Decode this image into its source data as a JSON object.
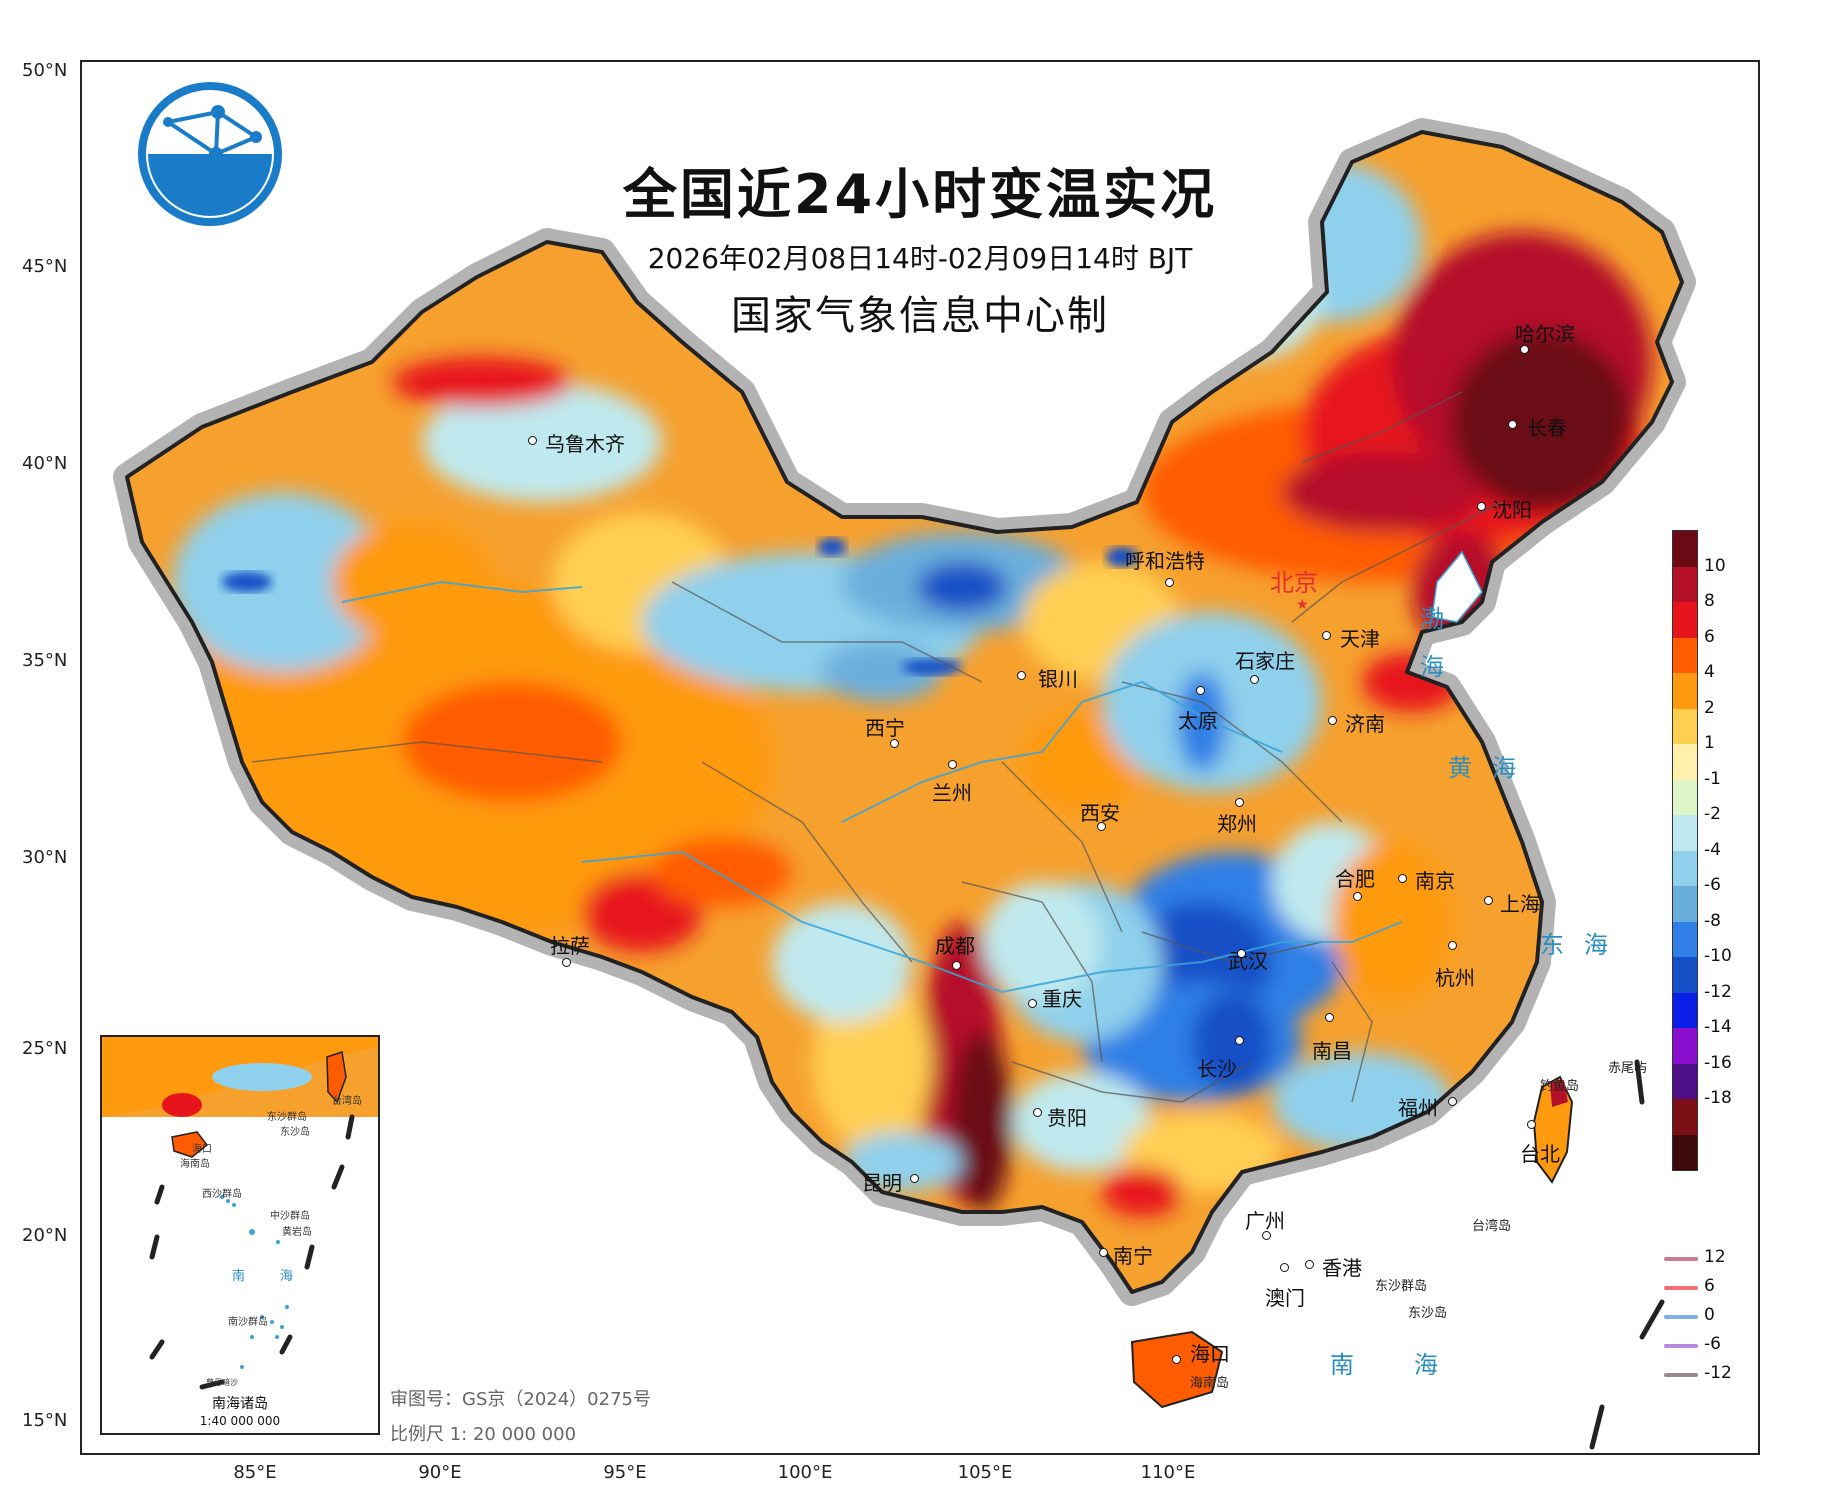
{
  "title": "全国近24小时变温实况",
  "period": "2026年02月08日14时-02月09日14时 BJT",
  "producer": "国家气象信息中心制",
  "axes": {
    "latitudes": [
      "50°N",
      "45°N",
      "40°N",
      "35°N",
      "30°N",
      "25°N",
      "20°N",
      "15°N"
    ],
    "longitudes": [
      "85°E",
      "90°E",
      "95°E",
      "100°E",
      "105°E",
      "110°E"
    ]
  },
  "legend": {
    "colors": [
      "#6b0a14",
      "#b5102a",
      "#e8141c",
      "#ff5b00",
      "#ff9a0f",
      "#ffcf52",
      "#fff1ad",
      "#dff5c8",
      "#bfe9ee",
      "#8fd0ec",
      "#6aaedc",
      "#2f7fe6",
      "#174fc6",
      "#0a1ee8",
      "#8a0fcf",
      "#4d0e88",
      "#7c1016",
      "#3f0a0d"
    ],
    "ticks": [
      "10",
      "8",
      "6",
      "4",
      "2",
      "1",
      "-1",
      "-2",
      "-4",
      "-6",
      "-8",
      "-10",
      "-12",
      "-14",
      "-16",
      "-18"
    ]
  },
  "line_legend": [
    {
      "label": "12",
      "color": "#c97a92"
    },
    {
      "label": "6",
      "color": "#f0707a"
    },
    {
      "label": "0",
      "color": "#7fb0e6"
    },
    {
      "label": "-6",
      "color": "#b88ae0"
    },
    {
      "label": "-12",
      "color": "#9a8a8a"
    }
  ],
  "cities": [
    {
      "name": "哈尔滨"
    },
    {
      "name": "长春"
    },
    {
      "name": "沈阳"
    },
    {
      "name": "呼和浩特"
    },
    {
      "name": "天津"
    },
    {
      "name": "石家庄"
    },
    {
      "name": "银川"
    },
    {
      "name": "太原"
    },
    {
      "name": "济南"
    },
    {
      "name": "西宁"
    },
    {
      "name": "兰州"
    },
    {
      "name": "西安"
    },
    {
      "name": "郑州"
    },
    {
      "name": "合肥"
    },
    {
      "name": "南京"
    },
    {
      "name": "上海"
    },
    {
      "name": "乌鲁木齐"
    },
    {
      "name": "拉萨"
    },
    {
      "name": "成都"
    },
    {
      "name": "武汉"
    },
    {
      "name": "杭州"
    },
    {
      "name": "重庆"
    },
    {
      "name": "长沙"
    },
    {
      "name": "南昌"
    },
    {
      "name": "贵阳"
    },
    {
      "name": "福州"
    },
    {
      "name": "昆明"
    },
    {
      "name": "台北"
    },
    {
      "name": "广州"
    },
    {
      "name": "南宁"
    },
    {
      "name": "香港"
    },
    {
      "name": "澳门"
    },
    {
      "name": "海口"
    }
  ],
  "capital": "北京",
  "seas": [
    "渤海",
    "黄海",
    "东海",
    "南海"
  ],
  "islands": [
    "钓鱼岛",
    "赤尾屿",
    "台湾岛",
    "东沙群岛",
    "东沙岛",
    "海南岛"
  ],
  "inset": {
    "title": "南海诸岛",
    "scale": "1:40 000 000",
    "labels": [
      "台湾岛",
      "东沙群岛",
      "东沙岛",
      "海口",
      "海南岛",
      "西沙群岛",
      "中沙群岛",
      "黄岩岛",
      "南",
      "海",
      "南沙群岛",
      "曾母暗沙"
    ]
  },
  "review_number": "审图号：GS京（2024）0275号",
  "scale": "比例尺 1: 20 000 000"
}
